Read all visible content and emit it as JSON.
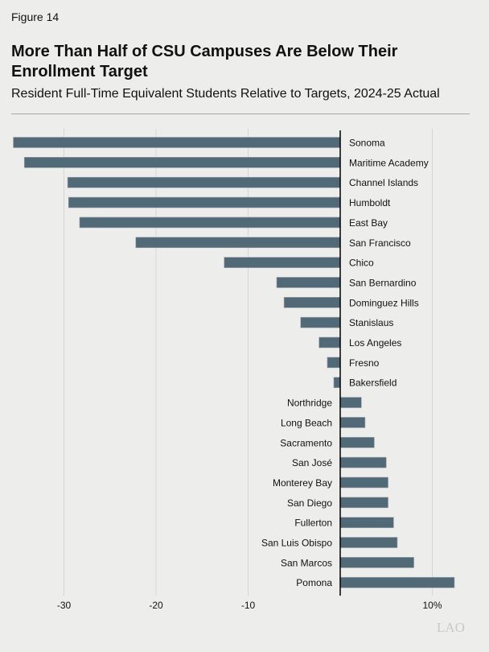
{
  "figure_label": "Figure 14",
  "title": "More Than Half of CSU Campuses Are Below Their Enrollment Target",
  "subtitle": "Resident Full-Time Equivalent Students Relative to Targets, 2024-25 Actual",
  "logo": "LAO",
  "colors": {
    "bar": "#526978",
    "background": "#ededec",
    "grid": "#d6d6d6"
  },
  "chart_data": {
    "type": "bar",
    "orientation": "horizontal",
    "categories": [
      "Sonoma",
      "Maritime Academy",
      "Channel Islands",
      "Humboldt",
      "East Bay",
      "San Francisco",
      "Chico",
      "San Bernardino",
      "Dominguez Hills",
      "Stanislaus",
      "Los Angeles",
      "Fresno",
      "Bakersfield",
      "Northridge",
      "Long Beach",
      "Sacramento",
      "San José",
      "Monterey Bay",
      "San Diego",
      "Fullerton",
      "San Luis Obispo",
      "San Marcos",
      "Pomona"
    ],
    "values": [
      -35.5,
      -34.3,
      -29.6,
      -29.5,
      -28.3,
      -22.2,
      -12.6,
      -6.9,
      -6.1,
      -4.3,
      -2.3,
      -1.4,
      -0.7,
      2.3,
      2.7,
      3.7,
      5.0,
      5.2,
      5.2,
      5.8,
      6.2,
      8.0,
      12.4
    ],
    "xlim": [
      -36,
      14
    ],
    "xticks": [
      -30,
      -20,
      -10,
      10
    ],
    "xtick_labels": [
      "-30",
      "-20",
      "-10",
      "10%"
    ],
    "grid": true,
    "xlabel": "",
    "ylabel": ""
  }
}
